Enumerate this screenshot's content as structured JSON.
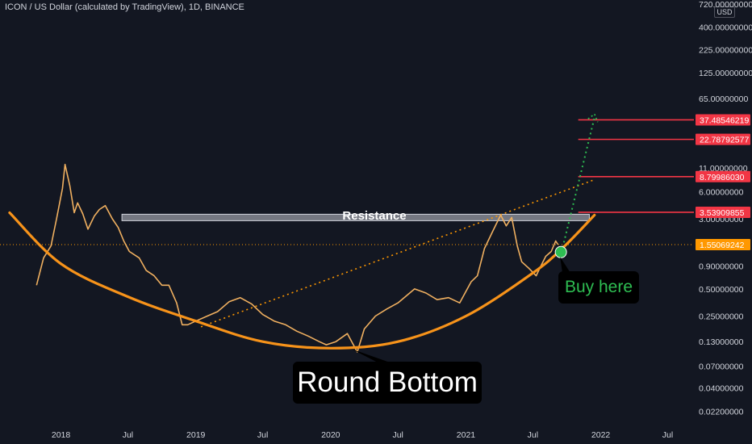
{
  "header": {
    "title": "ICON / US Dollar (calculated by TradingView), 1D, BINANCE"
  },
  "price_axis": {
    "currency": "USD",
    "ticks": [
      "720.00000000",
      "400.00000000",
      "225.00000000",
      "125.00000000",
      "65.00000000",
      "11.00000000",
      "6.00000000",
      "3.00000000",
      "0.90000000",
      "0.50000000",
      "0.25000000",
      "0.13000000",
      "0.07000000",
      "0.04000000",
      "0.02200000"
    ]
  },
  "time_axis": {
    "ticks": [
      "2018",
      "Jul",
      "2019",
      "Jul",
      "2020",
      "Jul",
      "2021",
      "Jul",
      "2022",
      "Jul"
    ]
  },
  "price_tags": [
    {
      "value": "37.48546219",
      "color": "#f23645"
    },
    {
      "value": "22.78792577",
      "color": "#f23645"
    },
    {
      "value": "8.79986030",
      "color": "#f23645"
    },
    {
      "value": "3.53909855",
      "color": "#f23645"
    },
    {
      "value": "1.55069242",
      "color": "#ff9800"
    }
  ],
  "annotations": {
    "resistance": "Resistance",
    "round_bottom": "Round Bottom",
    "buy_here": "Buy here"
  },
  "colors": {
    "background": "#131722",
    "candles": "#f0b060",
    "round_bottom_curve": "#f7931a",
    "target_lines": "#f23645",
    "projection": "#2ebd52",
    "resistance_band": "#9598a1"
  },
  "chart_data": {
    "type": "line",
    "series": [
      {
        "x": [
          "2017-10-27",
          "2017-11-15",
          "2017-12-05",
          "2017-12-20",
          "2018-01-05",
          "2018-01-12",
          "2018-01-25",
          "2018-02-06",
          "2018-02-15",
          "2018-03-01",
          "2018-03-15",
          "2018-04-01",
          "2018-04-15",
          "2018-05-01",
          "2018-05-20",
          "2018-06-05",
          "2018-06-20",
          "2018-07-05",
          "2018-08-01",
          "2018-08-20",
          "2018-09-10",
          "2018-10-01",
          "2018-10-20",
          "2018-11-10",
          "2018-11-25",
          "2018-12-10",
          "2019-01-01",
          "2019-02-01",
          "2019-03-01",
          "2019-04-01",
          "2019-05-01",
          "2019-06-01",
          "2019-07-01",
          "2019-08-01",
          "2019-09-01",
          "2019-10-01",
          "2019-11-01",
          "2019-12-01",
          "2019-12-20",
          "2020-01-15",
          "2020-02-15",
          "2020-03-13",
          "2020-04-01",
          "2020-05-01",
          "2020-06-01",
          "2020-07-01",
          "2020-08-15",
          "2020-09-15",
          "2020-10-15",
          "2020-11-15",
          "2020-12-15",
          "2021-01-15",
          "2021-02-01",
          "2021-02-20",
          "2021-03-15",
          "2021-04-05",
          "2021-04-20",
          "2021-05-05",
          "2021-05-20",
          "2021-06-01",
          "2021-06-20",
          "2021-07-10",
          "2021-07-20",
          "2021-08-05",
          "2021-08-20",
          "2021-09-01",
          "2021-09-07"
        ],
        "values": [
          0.55,
          1.1,
          1.5,
          3.0,
          6.5,
          12.0,
          7.0,
          3.5,
          4.5,
          3.4,
          2.3,
          3.2,
          3.8,
          4.2,
          3.0,
          2.4,
          1.7,
          1.3,
          1.1,
          0.8,
          0.7,
          0.55,
          0.55,
          0.35,
          0.2,
          0.2,
          0.22,
          0.25,
          0.28,
          0.36,
          0.4,
          0.34,
          0.26,
          0.22,
          0.2,
          0.17,
          0.15,
          0.13,
          0.12,
          0.13,
          0.16,
          0.1,
          0.18,
          0.25,
          0.3,
          0.35,
          0.5,
          0.45,
          0.38,
          0.4,
          0.35,
          0.6,
          0.7,
          1.4,
          2.2,
          3.3,
          2.5,
          3.1,
          1.5,
          1.0,
          0.85,
          0.7,
          0.85,
          1.15,
          1.3,
          1.7,
          1.55
        ]
      }
    ],
    "ylim": [
      0.015,
      800
    ],
    "log_scale": true,
    "xlim": [
      "2017-07-20",
      "2022-09-10"
    ],
    "round_bottom_curve": {
      "x": [
        "2017-08-15",
        "2018-01-01",
        "2018-07-01",
        "2019-01-01",
        "2019-07-01",
        "2020-01-01",
        "2020-07-01",
        "2021-01-01",
        "2021-07-01",
        "2021-09-22",
        "2021-12-15"
      ],
      "values": [
        3.5,
        0.95,
        0.41,
        0.22,
        0.13,
        0.11,
        0.13,
        0.25,
        0.75,
        1.45,
        3.3
      ]
    },
    "resistance_band": {
      "x_start": "2018-06-15",
      "x_end": "2021-12-01",
      "value": "3.1"
    },
    "trend_line": {
      "x": [
        "2019-01-15",
        "2021-12-10"
      ],
      "values": [
        0.19,
        8.0
      ]
    },
    "projection": {
      "x": [
        "2021-09-20",
        "2021-12-15"
      ],
      "values": [
        1.45,
        40.0
      ]
    },
    "buy_point": {
      "x": "2021-09-15",
      "value": 1.28
    },
    "targets": [
      37.48546219,
      22.78792577,
      8.7998603,
      3.53909855
    ],
    "current_price": 1.55069242,
    "grid": false,
    "title": "ICON / US Dollar (calculated by TradingView), 1D, BINANCE"
  }
}
